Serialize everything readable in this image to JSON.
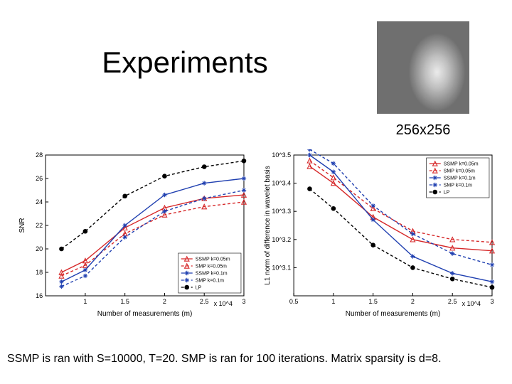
{
  "title": "Experiments",
  "image_caption": "256x256",
  "caption": "SSMP is ran with S=10000, T=20. SMP is ran for 100 iterations. Matrix sparsity is d=8.",
  "series_colors": {
    "ssmp_k005": "#d62728",
    "smp_k005": "#d62728",
    "ssmp_k01": "#1f3fb0",
    "smp_k01": "#1f3fb0",
    "lp": "#000000"
  },
  "legend_items": [
    {
      "label": "SSMP k=0.05m",
      "color": "#d62728",
      "dash": "none",
      "marker": "triangle"
    },
    {
      "label": "SMP k=0.05m",
      "color": "#d62728",
      "dash": "4,3",
      "marker": "triangle"
    },
    {
      "label": "SSMP k=0.1m",
      "color": "#1f3fb0",
      "dash": "none",
      "marker": "star"
    },
    {
      "label": "SMP k=0.1m",
      "color": "#1f3fb0",
      "dash": "4,3",
      "marker": "star"
    },
    {
      "label": "LP",
      "color": "#000000",
      "dash": "4,3",
      "marker": "circle"
    }
  ],
  "left_chart": {
    "type": "line",
    "xlabel": "Number of measurements (m)",
    "ylabel": "SNR",
    "x_scale_note": "x 10^4",
    "xlim": [
      0.5,
      3.0
    ],
    "ylim": [
      16,
      28
    ],
    "xticks": [
      1,
      1.5,
      2,
      2.5,
      3
    ],
    "yticks": [
      16,
      18,
      20,
      22,
      24,
      26,
      28
    ],
    "legend_pos": "bottom-right",
    "series": [
      {
        "key": "ssmp_k005",
        "dash": "none",
        "marker": "triangle",
        "x": [
          0.7,
          1.0,
          1.5,
          2.0,
          2.5,
          3.0
        ],
        "y": [
          18.0,
          19.0,
          21.8,
          23.5,
          24.3,
          24.6
        ]
      },
      {
        "key": "smp_k005",
        "dash": "4,3",
        "marker": "triangle",
        "x": [
          0.7,
          1.0,
          1.5,
          2.0,
          2.5,
          3.0
        ],
        "y": [
          17.7,
          18.6,
          21.3,
          22.9,
          23.6,
          24.0
        ]
      },
      {
        "key": "ssmp_k01",
        "dash": "none",
        "marker": "star",
        "x": [
          0.7,
          1.0,
          1.5,
          2.0,
          2.5,
          3.0
        ],
        "y": [
          17.2,
          18.2,
          22.0,
          24.6,
          25.6,
          26.0
        ]
      },
      {
        "key": "smp_k01",
        "dash": "4,3",
        "marker": "star",
        "x": [
          0.7,
          1.0,
          1.5,
          2.0,
          2.5,
          3.0
        ],
        "y": [
          16.8,
          17.7,
          21.0,
          23.2,
          24.3,
          25.0
        ]
      },
      {
        "key": "lp",
        "dash": "4,3",
        "marker": "circle",
        "x": [
          0.7,
          1.0,
          1.5,
          2.0,
          2.5,
          3.0
        ],
        "y": [
          20.0,
          21.5,
          24.5,
          26.2,
          27.0,
          27.5
        ]
      }
    ]
  },
  "right_chart": {
    "type": "line",
    "xlabel": "Number of measurements (m)",
    "ylabel": "L1 norm of difference in wavelet basis",
    "x_scale_note": "x 10^4",
    "xlim": [
      0.5,
      3.0
    ],
    "y_log_exp_lim": [
      3.0,
      3.5
    ],
    "xticks": [
      0.5,
      1,
      1.5,
      2,
      2.5,
      3
    ],
    "ytick_labels": [
      "10^3.1",
      "10^3.2",
      "10^3.3",
      "10^3.4",
      "10^3.5"
    ],
    "ytick_exp": [
      3.1,
      3.2,
      3.3,
      3.4,
      3.5
    ],
    "legend_pos": "top-right",
    "series": [
      {
        "key": "ssmp_k005",
        "dash": "none",
        "marker": "triangle",
        "x": [
          0.7,
          1.0,
          1.5,
          2.0,
          2.5,
          3.0
        ],
        "y_exp": [
          3.46,
          3.4,
          3.28,
          3.2,
          3.17,
          3.16
        ]
      },
      {
        "key": "smp_k005",
        "dash": "4,3",
        "marker": "triangle",
        "x": [
          0.7,
          1.0,
          1.5,
          2.0,
          2.5,
          3.0
        ],
        "y_exp": [
          3.48,
          3.42,
          3.31,
          3.23,
          3.2,
          3.19
        ]
      },
      {
        "key": "ssmp_k01",
        "dash": "none",
        "marker": "star",
        "x": [
          0.7,
          1.0,
          1.5,
          2.0,
          2.5,
          3.0
        ],
        "y_exp": [
          3.5,
          3.44,
          3.27,
          3.14,
          3.08,
          3.05
        ]
      },
      {
        "key": "smp_k01",
        "dash": "4,3",
        "marker": "star",
        "x": [
          0.7,
          1.0,
          1.5,
          2.0,
          2.5,
          3.0
        ],
        "y_exp": [
          3.52,
          3.47,
          3.32,
          3.22,
          3.15,
          3.11
        ]
      },
      {
        "key": "lp",
        "dash": "4,3",
        "marker": "circle",
        "x": [
          0.7,
          1.0,
          1.5,
          2.0,
          2.5,
          3.0
        ],
        "y_exp": [
          3.38,
          3.31,
          3.18,
          3.1,
          3.06,
          3.03
        ]
      }
    ]
  }
}
